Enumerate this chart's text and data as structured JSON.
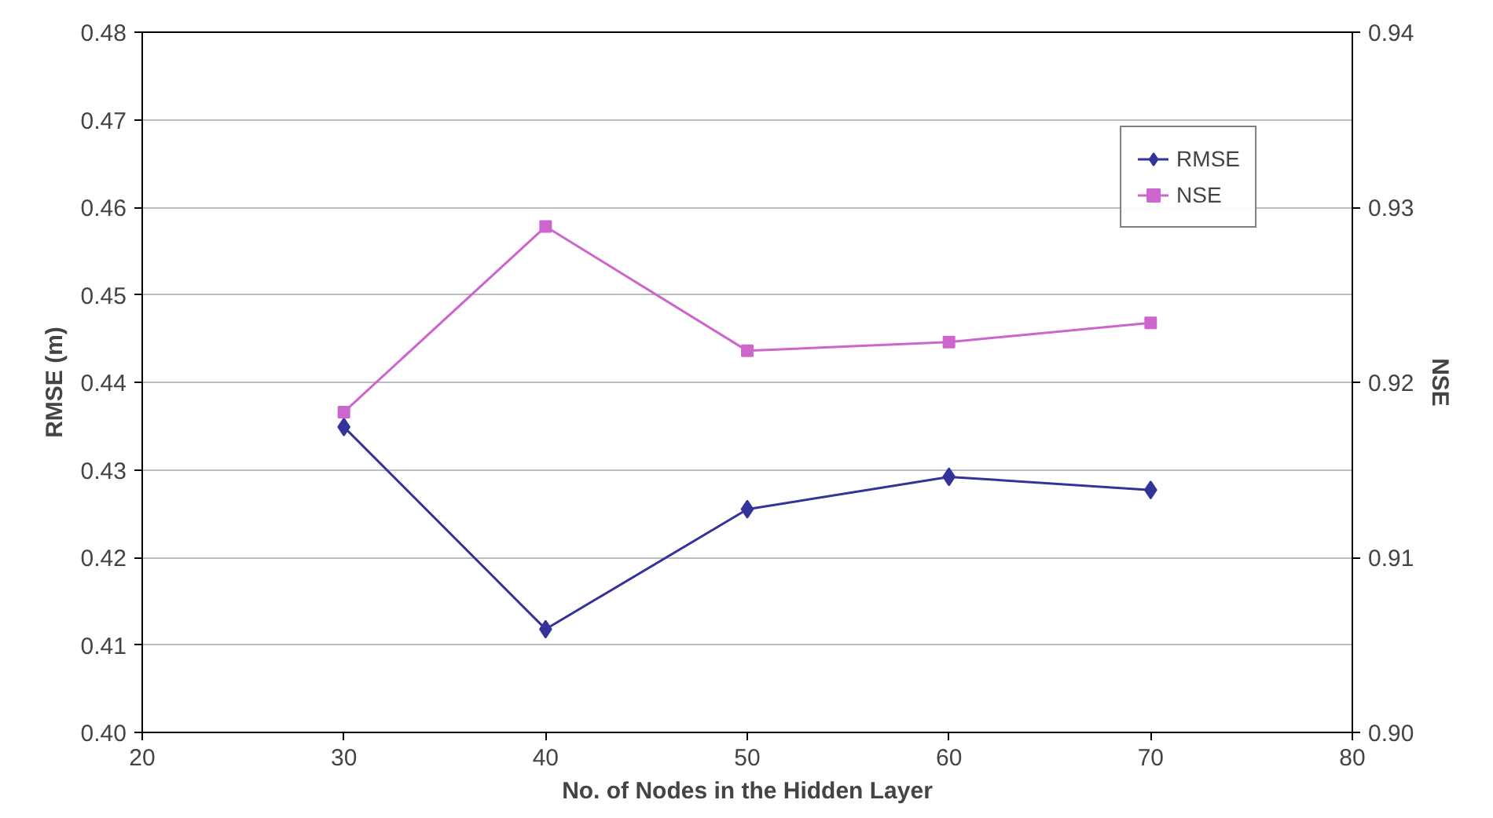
{
  "chart_data": {
    "type": "line",
    "xlabel": "No. of Nodes in the Hidden Layer",
    "ylabel": "RMSE (m)",
    "y2label": "NSE",
    "x": [
      30,
      40,
      50,
      60,
      70
    ],
    "series": [
      {
        "name": "RMSE",
        "color": "#333399",
        "marker": "diamond",
        "values": [
          0.4349,
          0.4118,
          0.4255,
          0.4292,
          0.4277
        ]
      },
      {
        "name": "NSE",
        "color": "#cc66cc",
        "marker": "square",
        "axis": "y2",
        "values": [
          0.9183,
          0.9289,
          0.9218,
          0.9223,
          0.9234
        ]
      }
    ],
    "xlim": [
      20,
      80
    ],
    "xticks": [
      20,
      30,
      40,
      50,
      60,
      70,
      80
    ],
    "ylim": [
      0.4,
      0.48
    ],
    "yticks": [
      {
        "value": 0.4,
        "label": "0.40"
      },
      0.41,
      0.42,
      0.43,
      0.44,
      0.45,
      0.46,
      0.47,
      0.48
    ],
    "y2lim": [
      0.9,
      0.94
    ],
    "y2ticks": [
      {
        "value": 0.9,
        "label": "0.90"
      },
      0.91,
      0.92,
      0.93,
      0.94
    ],
    "grid": "y",
    "legend": "top right",
    "line_style": "solid"
  }
}
